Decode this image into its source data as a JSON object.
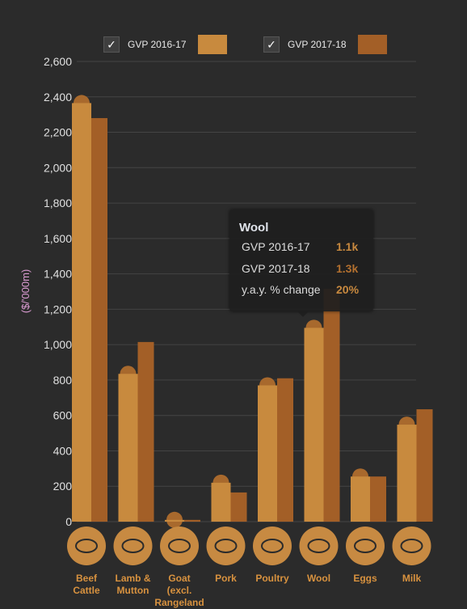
{
  "legend": [
    {
      "label": "GVP 2016-17",
      "check": "✓",
      "color": "#c88a3e"
    },
    {
      "label": "GVP 2017-18",
      "check": "✓",
      "color": "#a35f27"
    }
  ],
  "tooltip": {
    "title": "Wool",
    "rows": [
      {
        "label": "GVP 2016-17",
        "value": "1.1k",
        "color": "#c8893f"
      },
      {
        "label": "GVP 2017-18",
        "value": "1.3k",
        "color": "#b3702f"
      },
      {
        "label": "y.a.y. % change",
        "value": "20%",
        "color": "#c8893f"
      }
    ]
  },
  "chart_data": {
    "type": "bar",
    "ylabel": "($/'000m)",
    "ylim": [
      0,
      2600
    ],
    "yticks": [
      0,
      200,
      400,
      600,
      800,
      1000,
      1200,
      1400,
      1600,
      1800,
      2000,
      2200,
      2400,
      2600
    ],
    "ytick_labels": [
      "0",
      "200",
      "400",
      "600",
      "800",
      "1,000",
      "1,200",
      "1,400",
      "1,600",
      "1,800",
      "2,000",
      "2,200",
      "2,400",
      "2,600"
    ],
    "categories": [
      {
        "lines": [
          "Beef",
          "Cattle"
        ],
        "icon": "cow-icon"
      },
      {
        "lines": [
          "Lamb &",
          "Mutton"
        ],
        "icon": "sheep-icon"
      },
      {
        "lines": [
          "Goat",
          "(excl.",
          "Rangeland"
        ],
        "icon": "goat-icon"
      },
      {
        "lines": [
          "Pork"
        ],
        "icon": "pig-icon"
      },
      {
        "lines": [
          "Poultry"
        ],
        "icon": "chicken-icon"
      },
      {
        "lines": [
          "Wool"
        ],
        "icon": "sheep-wool-icon"
      },
      {
        "lines": [
          "Eggs"
        ],
        "icon": "eggs-icon"
      },
      {
        "lines": [
          "Milk"
        ],
        "icon": "milk-can-icon"
      }
    ],
    "series": [
      {
        "name": "GVP 2016-17",
        "color": "#c88a3e",
        "values": [
          2365,
          835,
          10,
          220,
          770,
          1095,
          255,
          548
        ]
      },
      {
        "name": "GVP 2017-18",
        "color": "#a35f27",
        "values": [
          2280,
          1015,
          10,
          165,
          810,
          1315,
          255,
          635
        ]
      }
    ],
    "colors": {
      "grid": "#444444",
      "axis_text": "#e0e0e0",
      "ylabel": "#d99ad1",
      "category_text": "#d8923f",
      "icon_circle": "#c78a42",
      "icon_glyph": "#2b2b2b"
    }
  }
}
